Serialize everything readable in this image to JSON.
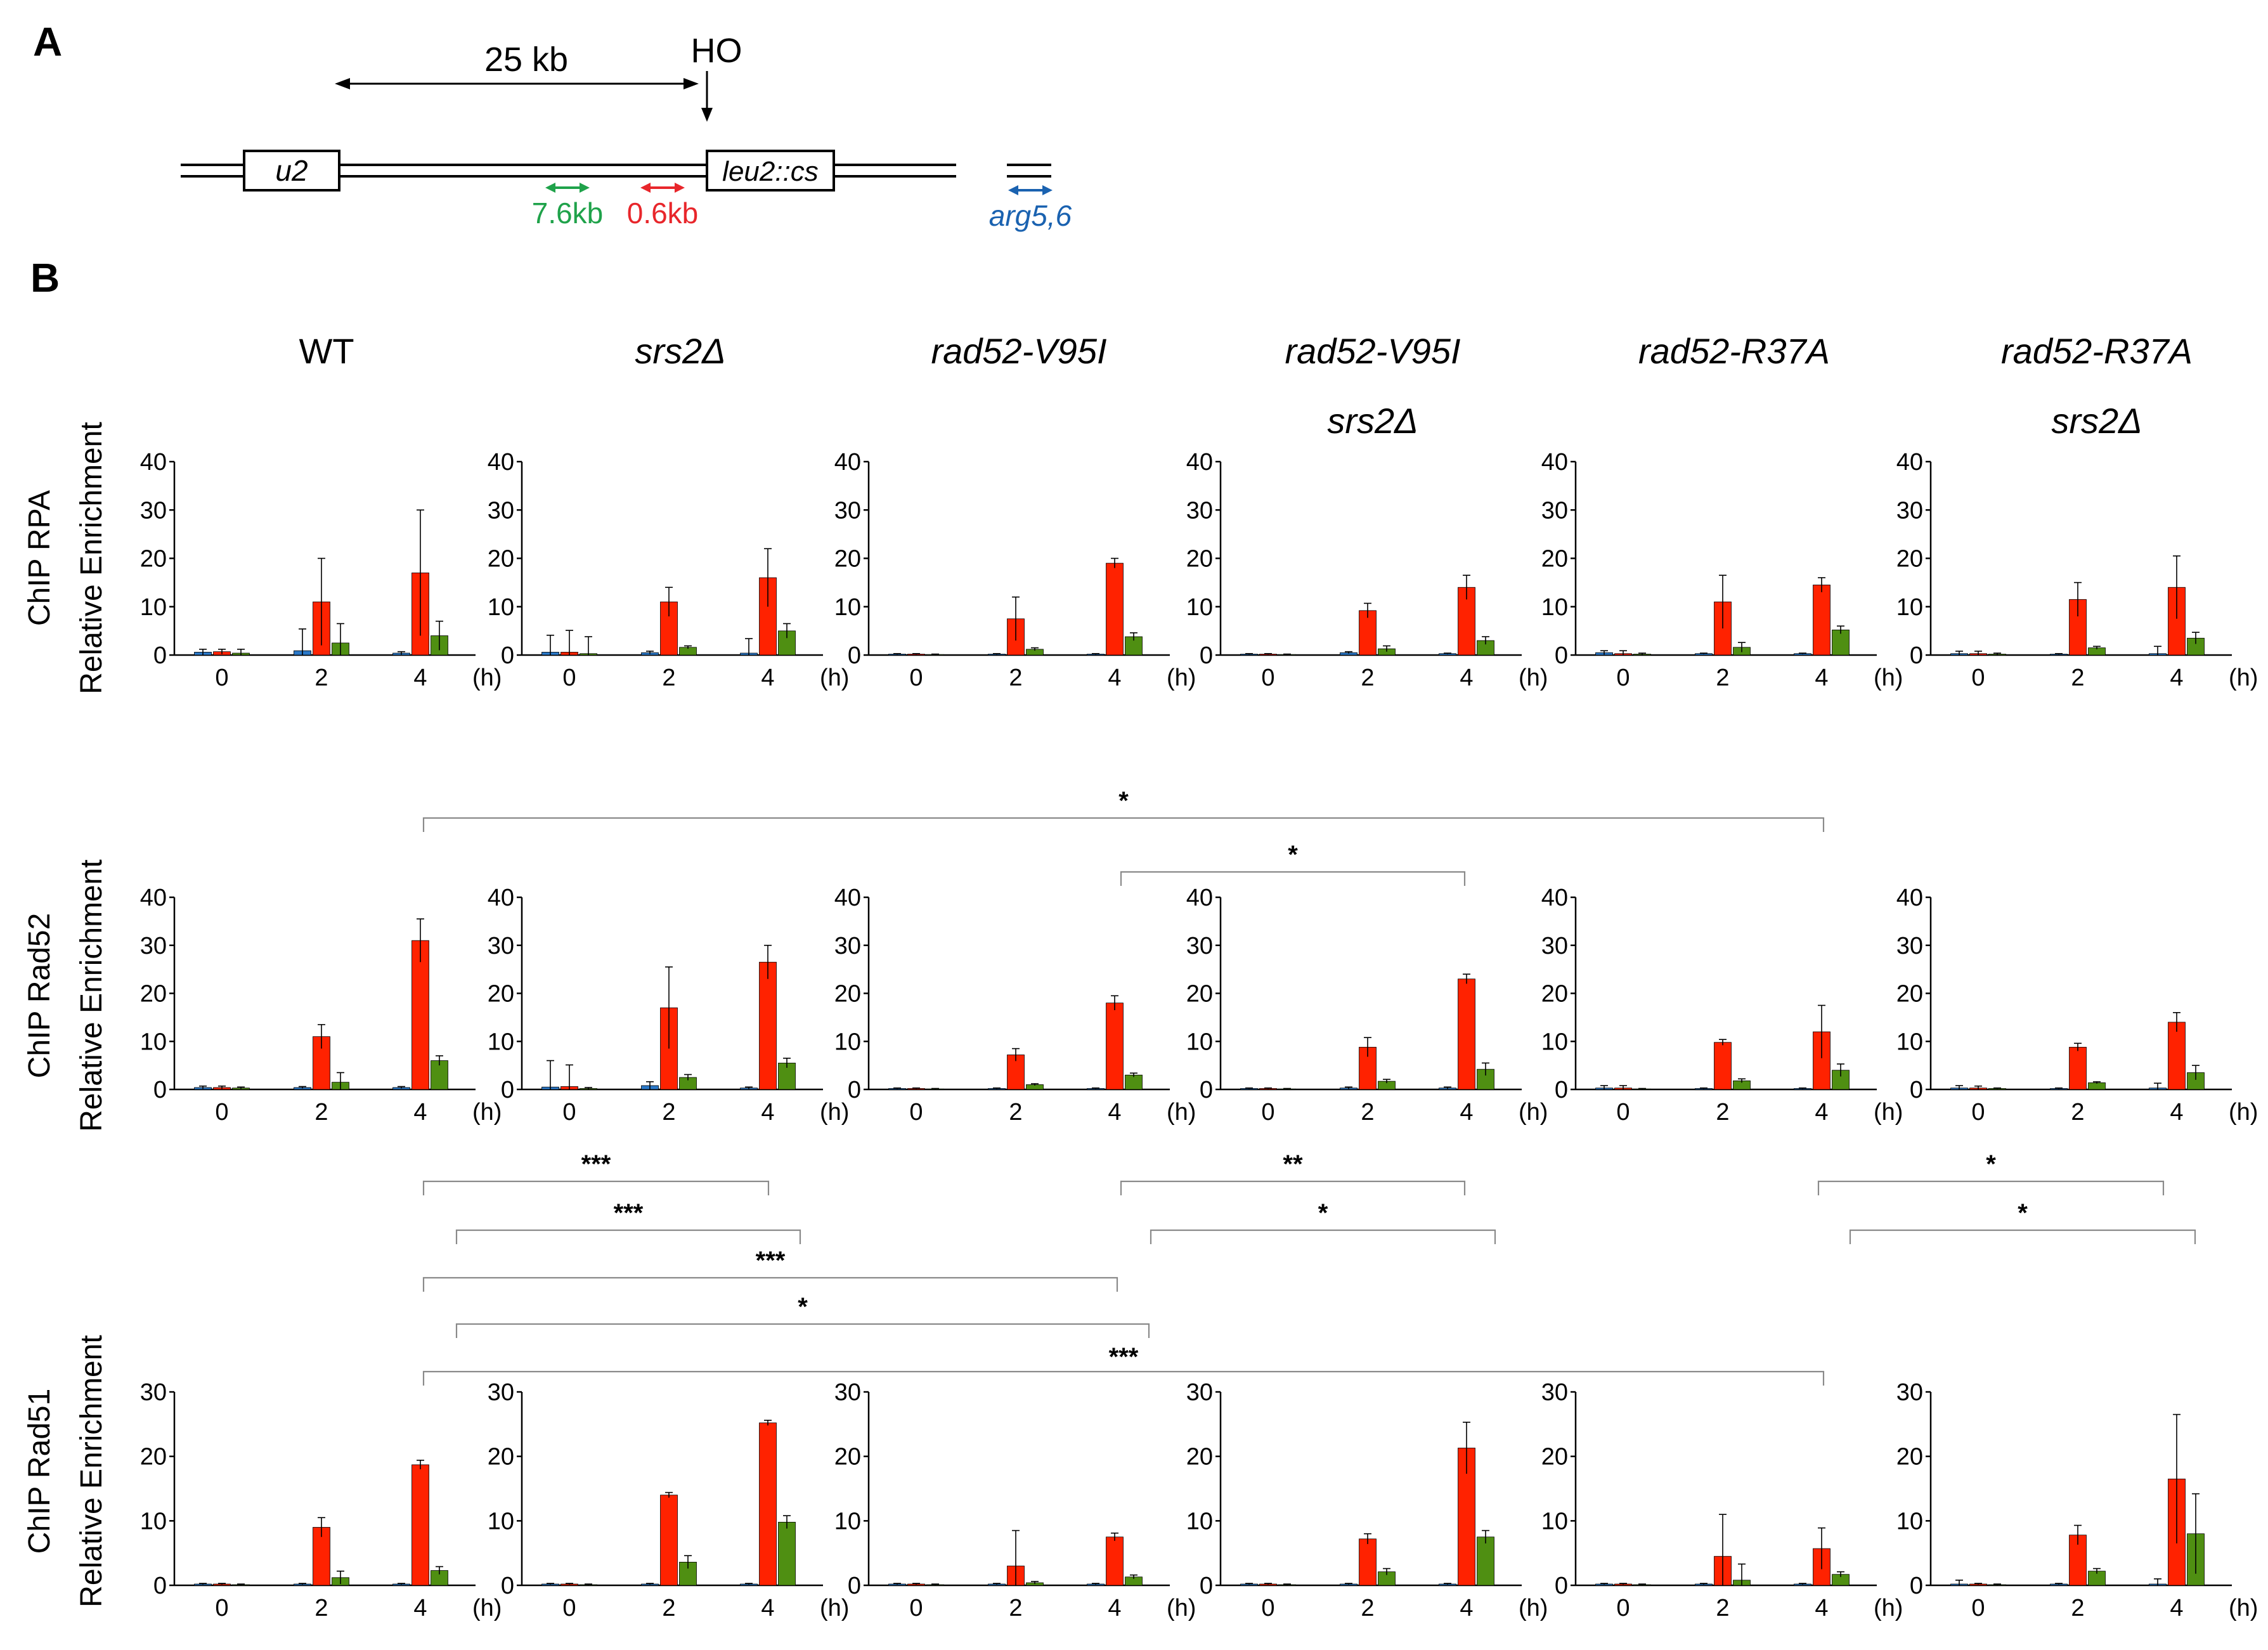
{
  "panel_labels": [
    "A",
    "B"
  ],
  "diagram": {
    "distance_label": "25 kb",
    "ho_label": "HO",
    "left_box": "u2",
    "right_box": "leu2::cs",
    "probes": [
      {
        "label": "7.6kb",
        "color": "#1fa24a"
      },
      {
        "label": "0.6kb",
        "color": "#e8262b"
      },
      {
        "label": "arg5,6",
        "color": "#1a62b0"
      }
    ]
  },
  "colors": {
    "blue": "#2a78c8",
    "red": "#ff2200",
    "green": "#4f8f12"
  },
  "strains": [
    {
      "line1": "WT",
      "line2": "",
      "italic": false
    },
    {
      "line1": "srs2Δ",
      "line2": "",
      "italic": true
    },
    {
      "line1": "rad52-V95I",
      "line2": "",
      "italic": true
    },
    {
      "line1": "rad52-V95I",
      "line2": "srs2Δ",
      "italic": true
    },
    {
      "line1": "rad52-R37A",
      "line2": "",
      "italic": true
    },
    {
      "line1": "rad52-R37A",
      "line2": "srs2Δ",
      "italic": true
    }
  ],
  "x_unit": "(h)",
  "chart_data": [
    {
      "type": "bar",
      "ylabel": [
        "ChIP RPA",
        "Relative Enrichment"
      ],
      "ylim": [
        0,
        40
      ],
      "yticks": [
        0,
        10,
        20,
        30,
        40
      ],
      "categories": [
        "0",
        "2",
        "4"
      ],
      "panels": [
        {
          "strain": "WT",
          "series": [
            {
              "color": "blue",
              "values": [
                0.6,
                0.9,
                0.4
              ],
              "err": [
                0.6,
                4.5,
                0.3
              ]
            },
            {
              "color": "red",
              "values": [
                0.7,
                11,
                17
              ],
              "err": [
                0.5,
                9,
                13
              ]
            },
            {
              "color": "green",
              "values": [
                0.4,
                2.5,
                4
              ],
              "err": [
                0.8,
                4,
                3
              ]
            }
          ]
        },
        {
          "strain": "srs2Δ",
          "series": [
            {
              "color": "blue",
              "values": [
                0.6,
                0.5,
                0.4
              ],
              "err": [
                3.5,
                0.3,
                3
              ]
            },
            {
              "color": "red",
              "values": [
                0.6,
                11,
                16
              ],
              "err": [
                4.5,
                3,
                6
              ]
            },
            {
              "color": "green",
              "values": [
                0.3,
                1.6,
                5
              ],
              "err": [
                3.5,
                0.3,
                1.5
              ]
            }
          ]
        },
        {
          "strain": "rad52-V95I",
          "series": [
            {
              "color": "blue",
              "values": [
                0.2,
                0.2,
                0.2
              ],
              "err": [
                0.1,
                0.1,
                0.1
              ]
            },
            {
              "color": "red",
              "values": [
                0.2,
                7.5,
                19
              ],
              "err": [
                0.1,
                4.5,
                1
              ]
            },
            {
              "color": "green",
              "values": [
                0.1,
                1.2,
                3.8
              ],
              "err": [
                0.1,
                0.3,
                0.8
              ]
            }
          ]
        },
        {
          "strain": "rad52-V95I srs2Δ",
          "series": [
            {
              "color": "blue",
              "values": [
                0.2,
                0.5,
                0.3
              ],
              "err": [
                0.1,
                0.2,
                0.1
              ]
            },
            {
              "color": "red",
              "values": [
                0.2,
                9.2,
                14
              ],
              "err": [
                0.1,
                1.5,
                2.5
              ]
            },
            {
              "color": "green",
              "values": [
                0.1,
                1.3,
                3
              ],
              "err": [
                0.1,
                0.6,
                0.8
              ]
            }
          ]
        },
        {
          "strain": "rad52-R37A",
          "series": [
            {
              "color": "blue",
              "values": [
                0.5,
                0.3,
                0.3
              ],
              "err": [
                0.4,
                0.1,
                0.1
              ]
            },
            {
              "color": "red",
              "values": [
                0.3,
                11,
                14.5
              ],
              "err": [
                0.6,
                5.5,
                1.5
              ]
            },
            {
              "color": "green",
              "values": [
                0.2,
                1.6,
                5.2
              ],
              "err": [
                0.2,
                1,
                0.8
              ]
            }
          ]
        },
        {
          "strain": "rad52-R37A srs2Δ",
          "series": [
            {
              "color": "blue",
              "values": [
                0.3,
                0.2,
                0.3
              ],
              "err": [
                0.5,
                0.1,
                1.5
              ]
            },
            {
              "color": "red",
              "values": [
                0.3,
                11.5,
                14
              ],
              "err": [
                0.5,
                3.5,
                6.5
              ]
            },
            {
              "color": "green",
              "values": [
                0.2,
                1.5,
                3.5
              ],
              "err": [
                0.2,
                0.3,
                1.2
              ]
            }
          ]
        }
      ]
    },
    {
      "type": "bar",
      "ylabel": [
        "ChIP Rad52",
        "Relative Enrichment"
      ],
      "ylim": [
        0,
        40
      ],
      "yticks": [
        0,
        10,
        20,
        30,
        40
      ],
      "categories": [
        "0",
        "2",
        "4"
      ],
      "panels": [
        {
          "strain": "WT",
          "series": [
            {
              "color": "blue",
              "values": [
                0.4,
                0.4,
                0.4
              ],
              "err": [
                0.3,
                0.2,
                0.2
              ]
            },
            {
              "color": "red",
              "values": [
                0.4,
                11,
                31
              ],
              "err": [
                0.3,
                2.5,
                4.5
              ]
            },
            {
              "color": "green",
              "values": [
                0.3,
                1.5,
                6
              ],
              "err": [
                0.2,
                2,
                1
              ]
            }
          ]
        },
        {
          "strain": "srs2Δ",
          "series": [
            {
              "color": "blue",
              "values": [
                0.5,
                0.8,
                0.3
              ],
              "err": [
                5.5,
                0.8,
                0.2
              ]
            },
            {
              "color": "red",
              "values": [
                0.6,
                17,
                26.5
              ],
              "err": [
                4.5,
                8.5,
                3.5
              ]
            },
            {
              "color": "green",
              "values": [
                0.2,
                2.5,
                5.5
              ],
              "err": [
                0.2,
                0.6,
                1
              ]
            }
          ]
        },
        {
          "strain": "rad52-V95I",
          "series": [
            {
              "color": "blue",
              "values": [
                0.2,
                0.2,
                0.2
              ],
              "err": [
                0.1,
                0.1,
                0.1
              ]
            },
            {
              "color": "red",
              "values": [
                0.2,
                7.2,
                18
              ],
              "err": [
                0.1,
                1.3,
                1.5
              ]
            },
            {
              "color": "green",
              "values": [
                0.1,
                1,
                3
              ],
              "err": [
                0.1,
                0.2,
                0.4
              ]
            }
          ]
        },
        {
          "strain": "rad52-V95I srs2Δ",
          "series": [
            {
              "color": "blue",
              "values": [
                0.2,
                0.3,
                0.3
              ],
              "err": [
                0.1,
                0.2,
                0.2
              ]
            },
            {
              "color": "red",
              "values": [
                0.2,
                8.8,
                23
              ],
              "err": [
                0.1,
                2,
                1
              ]
            },
            {
              "color": "green",
              "values": [
                0.1,
                1.7,
                4.2
              ],
              "err": [
                0.1,
                0.4,
                1.3
              ]
            }
          ]
        },
        {
          "strain": "rad52-R37A",
          "series": [
            {
              "color": "blue",
              "values": [
                0.3,
                0.2,
                0.2
              ],
              "err": [
                0.5,
                0.1,
                0.1
              ]
            },
            {
              "color": "red",
              "values": [
                0.3,
                9.8,
                12
              ],
              "err": [
                0.5,
                0.6,
                5.5
              ]
            },
            {
              "color": "green",
              "values": [
                0.1,
                1.8,
                4
              ],
              "err": [
                0.1,
                0.4,
                1.3
              ]
            }
          ]
        },
        {
          "strain": "rad52-R37A srs2Δ",
          "series": [
            {
              "color": "blue",
              "values": [
                0.3,
                0.2,
                0.3
              ],
              "err": [
                0.5,
                0.1,
                1
              ]
            },
            {
              "color": "red",
              "values": [
                0.3,
                8.8,
                14
              ],
              "err": [
                0.4,
                0.8,
                2
              ]
            },
            {
              "color": "green",
              "values": [
                0.2,
                1.4,
                3.5
              ],
              "err": [
                0.1,
                0.2,
                1.5
              ]
            }
          ]
        }
      ]
    },
    {
      "type": "bar",
      "ylabel": [
        "ChIP Rad51",
        "Relative Enrichment"
      ],
      "ylim": [
        0,
        30
      ],
      "yticks": [
        0,
        10,
        20,
        30
      ],
      "categories": [
        "0",
        "2",
        "4"
      ],
      "panels": [
        {
          "strain": "WT",
          "series": [
            {
              "color": "blue",
              "values": [
                0.2,
                0.2,
                0.2
              ],
              "err": [
                0.1,
                0.1,
                0.1
              ]
            },
            {
              "color": "red",
              "values": [
                0.2,
                9,
                18.7
              ],
              "err": [
                0.1,
                1.5,
                0.7
              ]
            },
            {
              "color": "green",
              "values": [
                0.1,
                1.2,
                2.3
              ],
              "err": [
                0.1,
                1,
                0.6
              ]
            }
          ]
        },
        {
          "strain": "srs2Δ",
          "series": [
            {
              "color": "blue",
              "values": [
                0.2,
                0.2,
                0.2
              ],
              "err": [
                0.1,
                0.1,
                0.1
              ]
            },
            {
              "color": "red",
              "values": [
                0.2,
                14,
                25.2
              ],
              "err": [
                0.1,
                0.4,
                0.4
              ]
            },
            {
              "color": "green",
              "values": [
                0.1,
                3.6,
                9.8
              ],
              "err": [
                0.1,
                1,
                1
              ]
            }
          ]
        },
        {
          "strain": "rad52-V95I",
          "series": [
            {
              "color": "blue",
              "values": [
                0.2,
                0.2,
                0.2
              ],
              "err": [
                0.1,
                0.1,
                0.1
              ]
            },
            {
              "color": "red",
              "values": [
                0.2,
                3,
                7.5
              ],
              "err": [
                0.1,
                5.5,
                0.6
              ]
            },
            {
              "color": "green",
              "values": [
                0.1,
                0.4,
                1.3
              ],
              "err": [
                0.1,
                0.2,
                0.3
              ]
            }
          ]
        },
        {
          "strain": "rad52-V95I srs2Δ",
          "series": [
            {
              "color": "blue",
              "values": [
                0.2,
                0.2,
                0.2
              ],
              "err": [
                0.1,
                0.1,
                0.1
              ]
            },
            {
              "color": "red",
              "values": [
                0.2,
                7.2,
                21.3
              ],
              "err": [
                0.1,
                0.8,
                4
              ]
            },
            {
              "color": "green",
              "values": [
                0.1,
                2.1,
                7.5
              ],
              "err": [
                0.1,
                0.5,
                1
              ]
            }
          ]
        },
        {
          "strain": "rad52-R37A",
          "series": [
            {
              "color": "blue",
              "values": [
                0.2,
                0.2,
                0.2
              ],
              "err": [
                0.1,
                0.1,
                0.1
              ]
            },
            {
              "color": "red",
              "values": [
                0.2,
                4.5,
                5.7
              ],
              "err": [
                0.1,
                6.5,
                3.2
              ]
            },
            {
              "color": "green",
              "values": [
                0.1,
                0.8,
                1.7
              ],
              "err": [
                0.1,
                2.5,
                0.4
              ]
            }
          ]
        },
        {
          "strain": "rad52-R37A srs2Δ",
          "series": [
            {
              "color": "blue",
              "values": [
                0.2,
                0.2,
                0.2
              ],
              "err": [
                0.6,
                0.1,
                0.8
              ]
            },
            {
              "color": "red",
              "values": [
                0.2,
                7.8,
                16.5
              ],
              "err": [
                0.1,
                1.5,
                10
              ]
            },
            {
              "color": "green",
              "values": [
                0.1,
                2.2,
                8
              ],
              "err": [
                0.1,
                0.4,
                6.2
              ]
            }
          ]
        }
      ]
    }
  ],
  "significance": [
    {
      "stars": "*"
    },
    {
      "stars": "*"
    },
    {
      "stars": "***"
    },
    {
      "stars": "***"
    },
    {
      "stars": "***"
    },
    {
      "stars": "*"
    },
    {
      "stars": "***"
    },
    {
      "stars": "**"
    },
    {
      "stars": "*"
    },
    {
      "stars": "*"
    },
    {
      "stars": "*"
    }
  ]
}
